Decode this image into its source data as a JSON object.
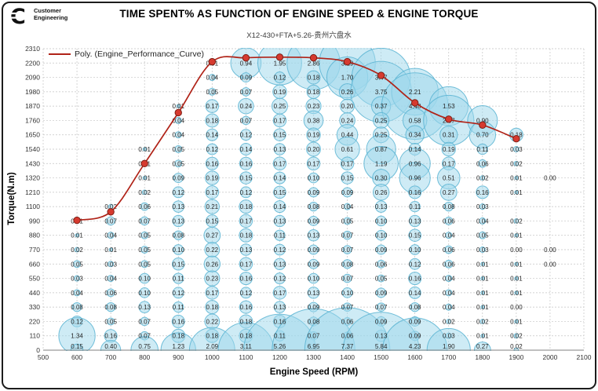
{
  "logo": {
    "line1": "Customer",
    "line2": "Engineering"
  },
  "title": "TIME SPENT% AS FUNCTION OF ENGINE SPEED & ENGINE TORQUE",
  "subtitle": "X12-430+FTA+5.26-贵州六盘水",
  "legend": {
    "label": "Poly. (Engine_Performance_Curve)",
    "line_color": "#b02318"
  },
  "chart_data": {
    "type": "scatter",
    "subtype": "bubble-grid-with-poly-curve",
    "title": "TIME SPENT% AS FUNCTION OF ENGINE SPEED & ENGINE TORQUE",
    "xlabel": "Engine Speed (RPM)",
    "ylabel": "Torque(N.m)",
    "xlim": [
      500,
      2100
    ],
    "ylim": [
      0,
      2310
    ],
    "x_ticks": [
      500,
      600,
      700,
      800,
      900,
      1000,
      1100,
      1200,
      1300,
      1400,
      1500,
      1600,
      1700,
      1800,
      1900,
      2000,
      2100
    ],
    "y_ticks": [
      0,
      110,
      220,
      330,
      440,
      550,
      660,
      770,
      880,
      990,
      1100,
      1210,
      1320,
      1430,
      1540,
      1650,
      1760,
      1870,
      1980,
      2090,
      2200,
      2310
    ],
    "grid": true,
    "legend_position": "top-left-inside",
    "bubble_series": {
      "name": "Time Spent %",
      "rpms": [
        600,
        700,
        800,
        900,
        1000,
        1100,
        1200,
        1300,
        1400,
        1500,
        1600,
        1700,
        1800,
        1900,
        2000
      ],
      "torques": [
        2200,
        2090,
        1980,
        1870,
        1760,
        1650,
        1540,
        1430,
        1320,
        1210,
        1100,
        990,
        880,
        770,
        660,
        550,
        440,
        330,
        220,
        110,
        0
      ],
      "values": [
        [
          null,
          null,
          null,
          null,
          0.01,
          0.94,
          1.95,
          2.86,
          3.19,
          null,
          null,
          null,
          null,
          null,
          null
        ],
        [
          null,
          null,
          null,
          null,
          0.04,
          0.09,
          0.12,
          0.18,
          1.7,
          3.47,
          null,
          null,
          null,
          null,
          null
        ],
        [
          null,
          null,
          null,
          null,
          0.05,
          0.07,
          0.19,
          0.18,
          0.26,
          3.75,
          2.21,
          null,
          null,
          null,
          null
        ],
        [
          null,
          null,
          null,
          0.01,
          0.17,
          0.24,
          0.25,
          0.23,
          0.2,
          0.37,
          4.48,
          1.53,
          null,
          null,
          null
        ],
        [
          null,
          null,
          null,
          0.04,
          0.18,
          0.07,
          0.17,
          0.38,
          0.24,
          0.25,
          0.58,
          2.57,
          0.9,
          null,
          null
        ],
        [
          null,
          null,
          null,
          0.04,
          0.14,
          0.12,
          0.15,
          0.19,
          0.44,
          0.25,
          0.34,
          0.31,
          0.7,
          0.18,
          null
        ],
        [
          null,
          null,
          0.01,
          0.05,
          0.12,
          0.14,
          0.13,
          0.2,
          0.61,
          0.87,
          0.14,
          0.19,
          0.11,
          0.03,
          null
        ],
        [
          null,
          null,
          0.01,
          0.05,
          0.16,
          0.16,
          0.17,
          0.17,
          0.17,
          1.19,
          0.96,
          0.17,
          0.06,
          0.02,
          null
        ],
        [
          null,
          null,
          0.01,
          0.09,
          0.19,
          0.15,
          0.14,
          0.1,
          0.15,
          0.3,
          0.96,
          0.51,
          0.02,
          0.01,
          0.0
        ],
        [
          null,
          null,
          0.02,
          0.12,
          0.17,
          0.12,
          0.15,
          0.09,
          0.09,
          0.26,
          0.16,
          0.27,
          0.16,
          0.01,
          null
        ],
        [
          null,
          0.02,
          0.06,
          0.13,
          0.21,
          0.18,
          0.14,
          0.08,
          0.04,
          0.13,
          0.11,
          0.08,
          0.03,
          null,
          null
        ],
        [
          0.01,
          0.07,
          0.07,
          0.13,
          0.15,
          0.17,
          0.13,
          0.09,
          0.05,
          0.1,
          0.13,
          0.06,
          0.04,
          0.02,
          null
        ],
        [
          0.01,
          0.04,
          0.05,
          0.08,
          0.27,
          0.18,
          0.11,
          0.13,
          0.07,
          0.1,
          0.15,
          0.04,
          0.05,
          0.01,
          null
        ],
        [
          0.02,
          0.01,
          0.05,
          0.1,
          0.22,
          0.13,
          0.12,
          0.09,
          0.07,
          0.09,
          0.1,
          0.06,
          0.03,
          0.0,
          0.0
        ],
        [
          0.05,
          0.03,
          0.05,
          0.15,
          0.26,
          0.17,
          0.13,
          0.09,
          0.08,
          0.06,
          0.12,
          0.06,
          0.01,
          0.01,
          0.0
        ],
        [
          0.03,
          0.04,
          0.1,
          0.11,
          0.23,
          0.16,
          0.12,
          0.1,
          0.07,
          0.05,
          0.16,
          0.04,
          0.01,
          0.01,
          null
        ],
        [
          0.04,
          0.06,
          0.1,
          0.12,
          0.17,
          0.12,
          0.17,
          0.13,
          0.1,
          0.09,
          0.14,
          0.04,
          0.01,
          0.01,
          null
        ],
        [
          0.08,
          0.08,
          0.13,
          0.11,
          0.18,
          0.16,
          0.13,
          0.09,
          0.07,
          0.07,
          0.08,
          0.04,
          0.01,
          0.0,
          null
        ],
        [
          0.12,
          0.05,
          0.07,
          0.16,
          0.22,
          0.18,
          0.16,
          0.08,
          0.06,
          0.09,
          0.09,
          0.02,
          0.02,
          0.01,
          null
        ],
        [
          1.34,
          0.16,
          0.07,
          0.18,
          0.18,
          0.18,
          0.11,
          0.07,
          0.06,
          0.13,
          0.09,
          0.03,
          0.01,
          0.02,
          null
        ],
        [
          0.15,
          0.4,
          0.75,
          1.23,
          2.09,
          3.11,
          5.26,
          6.95,
          7.37,
          5.84,
          4.23,
          1.9,
          0.27,
          0.02,
          null
        ]
      ]
    },
    "poly_curve": {
      "name": "Engine_Performance_Curve",
      "rpm": [
        600,
        700,
        800,
        900,
        1000,
        1100,
        1200,
        1300,
        1400,
        1500,
        1600,
        1700,
        1800,
        1900
      ],
      "torque": [
        995,
        1060,
        1430,
        1820,
        2210,
        2240,
        2245,
        2240,
        2210,
        2105,
        1895,
        1770,
        1725,
        1620
      ]
    },
    "colors": {
      "bubble_fill": "#9ed8eb",
      "bubble_stroke": "#5ab4d2",
      "curve": "#b02318",
      "marker_fill": "#d63a2f",
      "marker_stroke": "#7c1f16",
      "grid": "#c3c3c3",
      "axis": "#7f7f7f",
      "tick_text": "#333333",
      "label_text": "#262626"
    }
  }
}
